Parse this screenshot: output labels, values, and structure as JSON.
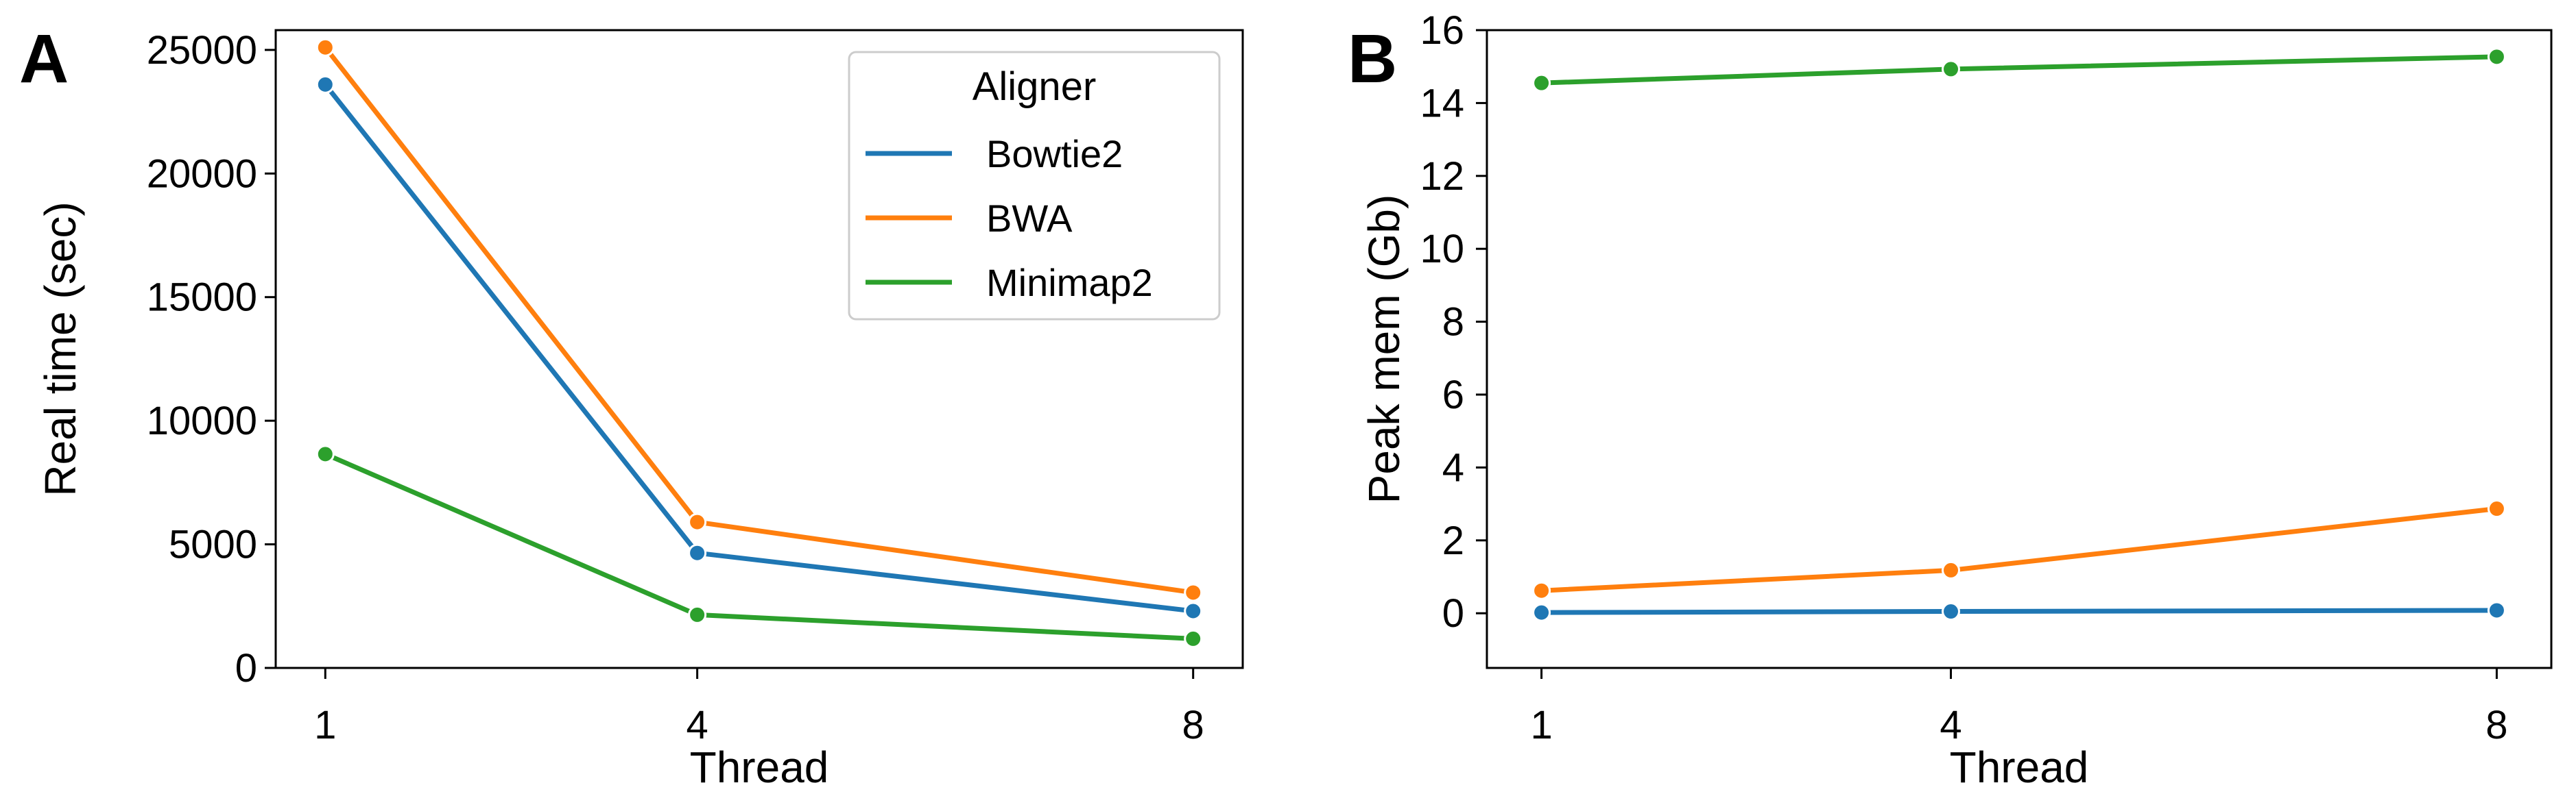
{
  "colors": {
    "Bowtie2": "#1f77b4",
    "BWA": "#ff7f0e",
    "Minimap2": "#2ca02c"
  },
  "legend": {
    "title": "Aligner",
    "entries": [
      "Bowtie2",
      "BWA",
      "Minimap2"
    ]
  },
  "chart_data": [
    {
      "panel": "A",
      "type": "line",
      "xlabel": "Thread",
      "ylabel": "Real time (sec)",
      "x": [
        1,
        4,
        8
      ],
      "x_ticks": [
        1,
        4,
        8
      ],
      "xlim": [
        0.6,
        8.4
      ],
      "ylim": [
        0,
        25800
      ],
      "y_ticks": [
        0,
        5000,
        10000,
        15000,
        20000,
        25000
      ],
      "y_tick_labels": [
        "0",
        "5000",
        "10000",
        "15000",
        "20000",
        "25000"
      ],
      "legend_position": "top-right",
      "series": [
        {
          "name": "Bowtie2",
          "values": [
            23600,
            4650,
            2300
          ]
        },
        {
          "name": "BWA",
          "values": [
            25100,
            5900,
            3050
          ]
        },
        {
          "name": "Minimap2",
          "values": [
            8650,
            2150,
            1180
          ]
        }
      ]
    },
    {
      "panel": "B",
      "type": "line",
      "xlabel": "Thread",
      "ylabel": "Peak mem (Gb)",
      "x": [
        1,
        4,
        8
      ],
      "x_ticks": [
        1,
        4,
        8
      ],
      "xlim": [
        0.6,
        8.4
      ],
      "ylim": [
        -1.5,
        16.0
      ],
      "y_ticks": [
        0,
        2,
        4,
        6,
        8,
        10,
        12,
        14,
        16
      ],
      "y_tick_labels": [
        "0",
        "2",
        "4",
        "6",
        "8",
        "10",
        "12",
        "14",
        "16"
      ],
      "series": [
        {
          "name": "Bowtie2",
          "values": [
            0.02,
            0.05,
            0.08
          ]
        },
        {
          "name": "BWA",
          "values": [
            0.62,
            1.18,
            2.87
          ]
        },
        {
          "name": "Minimap2",
          "values": [
            14.55,
            14.93,
            15.27
          ]
        }
      ]
    }
  ]
}
